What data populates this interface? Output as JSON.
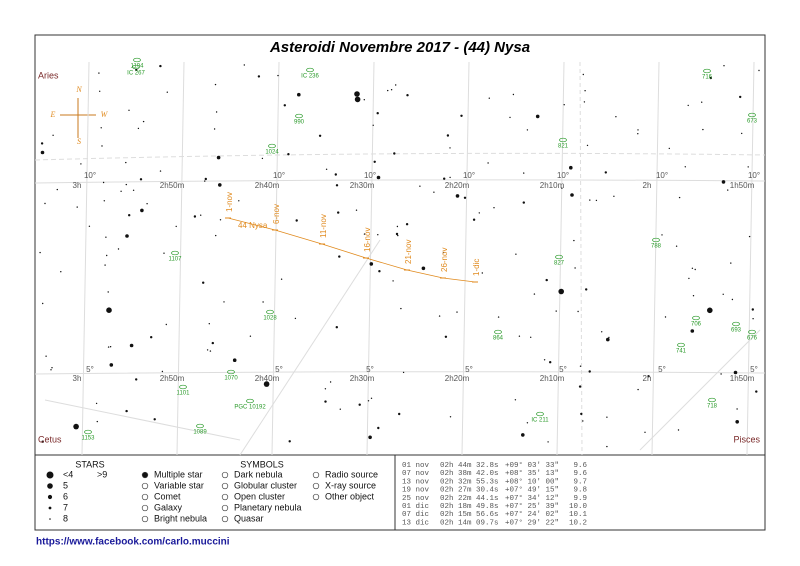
{
  "header": {
    "title": "Asteroidi Novembre 2017 - (44) Nysa"
  },
  "constellations": [
    "Aries",
    "Cetus",
    "Pisces"
  ],
  "compass": {
    "north": "N",
    "south": "S",
    "east": "E",
    "west": "W"
  },
  "ra_labels_top": [
    "3h",
    "2h50m",
    "2h40m",
    "2h30m",
    "2h20m",
    "2h10m",
    "2h",
    "1h50m"
  ],
  "ra_labels_bottom": [
    "3h",
    "2h50m",
    "2h40m",
    "2h30m",
    "2h20m",
    "2h10m",
    "2h",
    "1h50m"
  ],
  "dec_labels_top": [
    "10°",
    "10°",
    "10°",
    "10°",
    "10°",
    "10°",
    "10°"
  ],
  "dec_labels_bottom": [
    "5°",
    "5°",
    "5°",
    "5°",
    "5°",
    "5°",
    "5°"
  ],
  "objects": [
    "1194",
    "IC 267",
    "IC 236",
    "990",
    "1024",
    "821",
    "716",
    "673",
    "1107",
    "827",
    "788",
    "1028",
    "864",
    "706",
    "693",
    "741",
    "676",
    "1101",
    "1070",
    "PGC 10192",
    "1089",
    "1153",
    "IC 211",
    "718"
  ],
  "asteroid": {
    "name": "44 Nysa",
    "dates": [
      "1-nov",
      "6-nov",
      "11-nov",
      "16-nov",
      "21-nov",
      "26-nov",
      "1-dic"
    ]
  },
  "legend": {
    "stars_title": "STARS",
    "bright": "<4",
    "faint": ">9",
    "magnitudes": [
      "5",
      "6",
      "7",
      "8"
    ],
    "symbols_title": "SYMBOLS",
    "symbols": [
      "Multiple star",
      "Variable star",
      "Comet",
      "Galaxy",
      "Bright nebula",
      "Dark nebula",
      "Globular cluster",
      "Open cluster",
      "Planetary nebula",
      "Quasar",
      "Radio source",
      "X-ray source",
      "Other object"
    ]
  },
  "ephemeris": [
    [
      "01 nov",
      "02h 44m 32.8s",
      "+09° 03' 33\"",
      "9.6"
    ],
    [
      "07 nov",
      "02h 38m 42.0s",
      "+08° 35' 13\"",
      "9.6"
    ],
    [
      "13 nov",
      "02h 32m 55.3s",
      "+08° 10' 00\"",
      "9.7"
    ],
    [
      "19 nov",
      "02h 27m 30.4s",
      "+07° 49' 15\"",
      "9.8"
    ],
    [
      "25 nov",
      "02h 22m 44.1s",
      "+07° 34' 12\"",
      "9.9"
    ],
    [
      "01 dic",
      "02h 18m 49.8s",
      "+07° 25' 39\"",
      "10.0"
    ],
    [
      "07 dic",
      "02h 15m 56.6s",
      "+07° 24' 02\"",
      "10.1"
    ],
    [
      "13 dic",
      "02h 14m 09.7s",
      "+07° 29' 22\"",
      "10.2"
    ]
  ],
  "footer": {
    "url": "https://www.facebook.com/carlo.muccini"
  }
}
